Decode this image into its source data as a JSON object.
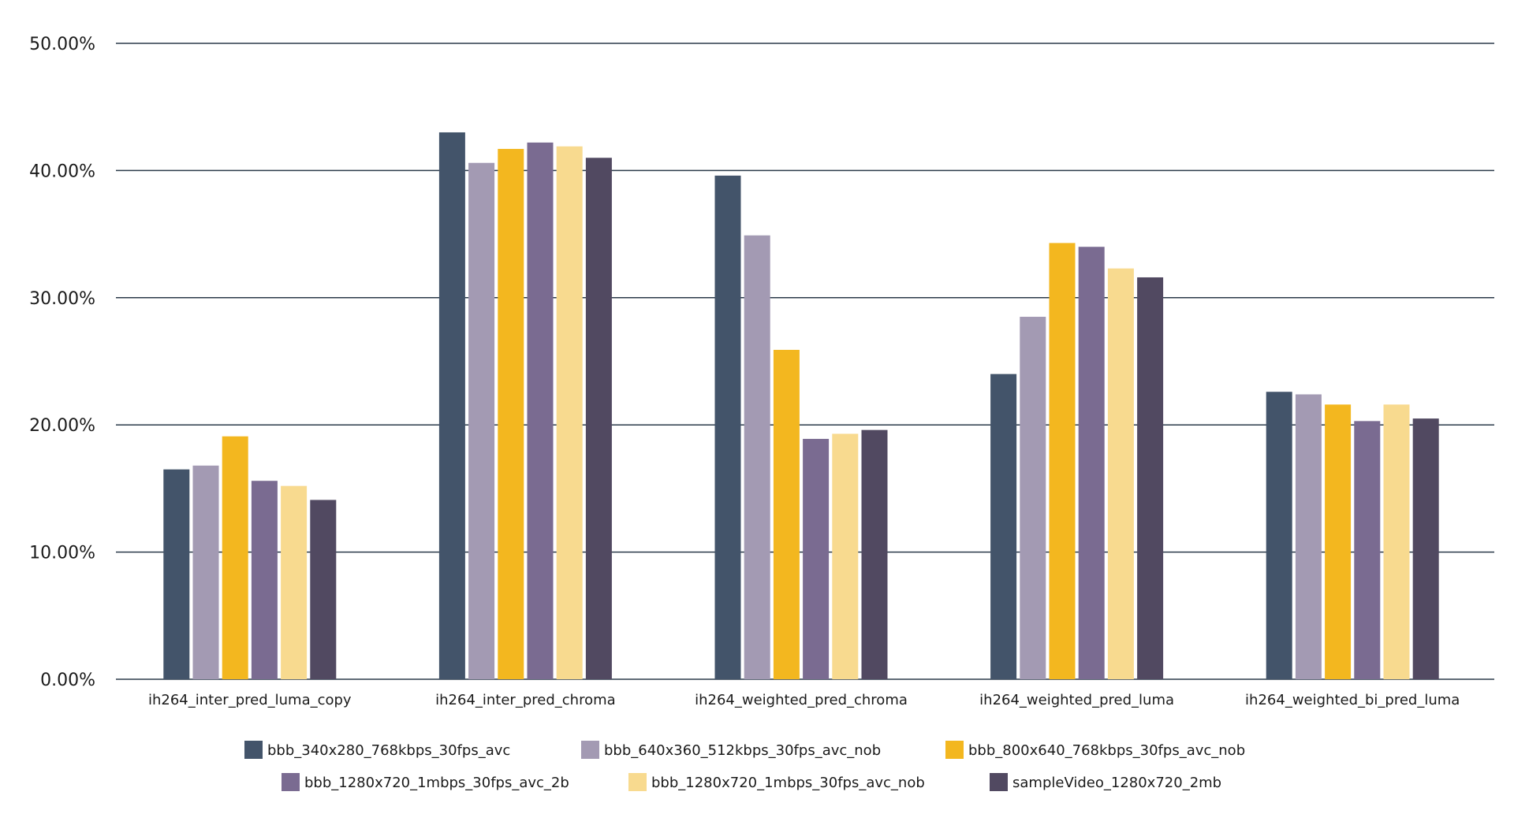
{
  "chart_data": {
    "type": "bar",
    "title": "",
    "xlabel": "",
    "ylabel": "",
    "ylim": [
      0,
      50
    ],
    "y_ticks": [
      "0.00%",
      "10.00%",
      "20.00%",
      "30.00%",
      "40.00%",
      "50.00%"
    ],
    "grid": true,
    "legend_position": "bottom",
    "categories": [
      "ih264_inter_pred_luma_copy",
      "ih264_inter_pred_chroma",
      "ih264_weighted_pred_chroma",
      "ih264_weighted_pred_luma",
      "ih264_weighted_bi_pred_luma"
    ],
    "series": [
      {
        "name": "bbb_340x280_768kbps_30fps_avc",
        "color": "#43546A",
        "values": [
          16.5,
          43.0,
          39.6,
          24.0,
          22.6
        ]
      },
      {
        "name": "bbb_640x360_512kbps_30fps_avc_nob",
        "color": "#A39AB3",
        "values": [
          16.8,
          40.6,
          34.9,
          28.5,
          22.4
        ]
      },
      {
        "name": "bbb_800x640_768kbps_30fps_avc_nob",
        "color": "#F3B71F",
        "values": [
          19.1,
          41.7,
          25.9,
          34.3,
          21.6
        ]
      },
      {
        "name": "bbb_1280x720_1mbps_30fps_avc_2b",
        "color": "#7A6B91",
        "values": [
          15.6,
          42.2,
          18.9,
          34.0,
          20.3
        ]
      },
      {
        "name": "bbb_1280x720_1mbps_30fps_avc_nob",
        "color": "#F8DA8F",
        "values": [
          15.2,
          41.9,
          19.3,
          32.3,
          21.6
        ]
      },
      {
        "name": "sampleVideo_1280x720_2mb",
        "color": "#514961",
        "values": [
          14.1,
          41.0,
          19.6,
          31.6,
          20.5
        ]
      }
    ]
  }
}
